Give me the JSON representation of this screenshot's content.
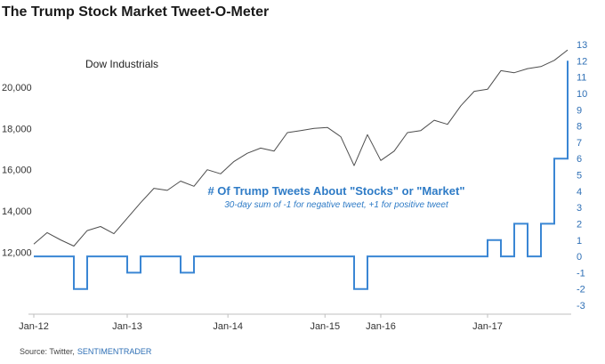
{
  "chart_data": {
    "type": "line",
    "title": "The Trump Stock Market Tweet-O-Meter",
    "x": [
      "2012-01",
      "2012-03",
      "2012-05",
      "2012-06",
      "2012-08",
      "2012-10",
      "2012-11",
      "2013-01",
      "2013-03",
      "2013-05",
      "2013-06",
      "2013-08",
      "2013-10",
      "2013-12",
      "2014-02",
      "2014-04",
      "2014-06",
      "2014-08",
      "2014-10",
      "2014-12",
      "2015-02",
      "2015-04",
      "2015-06",
      "2015-08",
      "2015-09",
      "2015-11",
      "2016-01",
      "2016-02",
      "2016-04",
      "2016-06",
      "2016-07",
      "2016-09",
      "2016-11",
      "2016-12",
      "2017-01",
      "2017-02",
      "2017-03",
      "2017-04",
      "2017-05",
      "2017-06",
      "2017-07"
    ],
    "x_ticks": [
      "Jan-12",
      "Jan-13",
      "Jan-14",
      "Jan-15",
      "Jan-16",
      "Jan-17"
    ],
    "series": [
      {
        "name": "Dow Industrials",
        "axis": "left",
        "color": "#4d4d4d",
        "values": [
          12400,
          12950,
          12600,
          12300,
          13050,
          13250,
          12900,
          13650,
          14400,
          15100,
          15000,
          15450,
          15200,
          16000,
          15800,
          16400,
          16800,
          17050,
          16900,
          17800,
          17900,
          18000,
          18050,
          17600,
          16200,
          17700,
          16450,
          16900,
          17800,
          17900,
          18400,
          18200,
          19100,
          19800,
          19900,
          20800,
          20700,
          20900,
          21000,
          21300,
          21800
        ]
      },
      {
        "name": "# Of Trump Tweets About \"Stocks\" or \"Market\"",
        "subtitle": "30-day sum of -1 for negative tweet, +1 for positive tweet",
        "axis": "right",
        "color": "#3a86d4",
        "values": [
          0,
          0,
          0,
          -2,
          0,
          0,
          0,
          -1,
          0,
          0,
          0,
          -1,
          0,
          0,
          0,
          0,
          0,
          0,
          0,
          0,
          0,
          0,
          0,
          0,
          -2,
          0,
          0,
          0,
          0,
          0,
          0,
          0,
          0,
          0,
          1,
          0,
          2,
          0,
          2,
          6,
          12
        ]
      }
    ],
    "left_axis": {
      "ticks": [
        "12,000",
        "14,000",
        "16,000",
        "18,000",
        "20,000"
      ],
      "ylim": [
        9000,
        22500
      ]
    },
    "right_axis": {
      "ticks": [
        "-3",
        "-2",
        "-1",
        "0",
        "1",
        "2",
        "3",
        "4",
        "5",
        "6",
        "7",
        "8",
        "9",
        "10",
        "11",
        "12",
        "13"
      ],
      "ylim": [
        -3,
        13
      ]
    },
    "annotations": {
      "dow_label": "Dow Industrials",
      "tweets_label": "# Of Trump Tweets About \"Stocks\" or \"Market\"",
      "tweets_sub": "30-day sum of -1 for negative tweet, +1 for positive tweet"
    },
    "source": {
      "prefix": "Source: Twitter,",
      "brand": "SENTIMENTRADER"
    }
  }
}
